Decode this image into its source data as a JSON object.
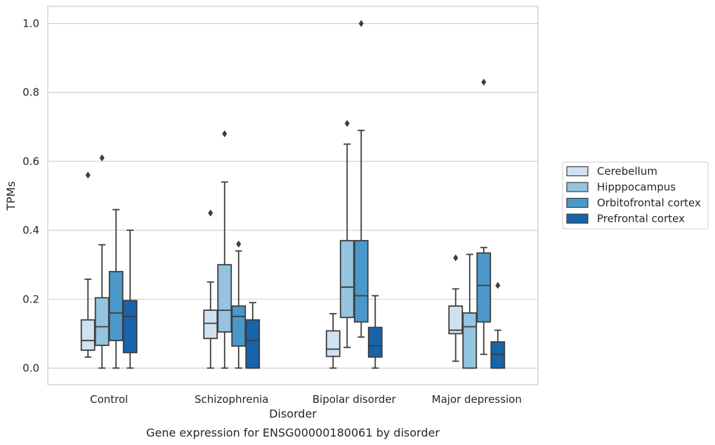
{
  "chart_data": {
    "type": "box",
    "caption": "Gene expression for ENSG00000180061 by disorder",
    "xlabel": "Disorder",
    "ylabel": "TPMs",
    "ylim": [
      -0.048,
      1.05
    ],
    "yticks": [
      "0.0",
      "0.2",
      "0.4",
      "0.6",
      "0.8",
      "1.0"
    ],
    "categories": [
      "Control",
      "Schizophrenia",
      "Bipolar disorder",
      "Major depression"
    ],
    "grid": true,
    "legend_position": "right",
    "colors": [
      "#d0e1f2",
      "#94c4df",
      "#4a98c9",
      "#1764ab"
    ],
    "series": [
      {
        "name": "Cerebellum",
        "boxes": [
          {
            "whislo": 0.032,
            "q1": 0.052,
            "med": 0.08,
            "q3": 0.14,
            "whishi": 0.258,
            "fliers": [
              0.56
            ]
          },
          {
            "whislo": 0.0,
            "q1": 0.086,
            "med": 0.13,
            "q3": 0.168,
            "whishi": 0.25,
            "fliers": [
              0.45
            ]
          },
          {
            "whislo": 0.0,
            "q1": 0.034,
            "med": 0.055,
            "q3": 0.108,
            "whishi": 0.158,
            "fliers": []
          },
          {
            "whislo": 0.02,
            "q1": 0.1,
            "med": 0.11,
            "q3": 0.18,
            "whishi": 0.23,
            "fliers": [
              0.32
            ]
          }
        ]
      },
      {
        "name": "Hipppocampus",
        "boxes": [
          {
            "whislo": 0.0,
            "q1": 0.066,
            "med": 0.12,
            "q3": 0.204,
            "whishi": 0.358,
            "fliers": [
              0.61
            ]
          },
          {
            "whislo": 0.0,
            "q1": 0.105,
            "med": 0.168,
            "q3": 0.3,
            "whishi": 0.54,
            "fliers": [
              0.68
            ]
          },
          {
            "whislo": 0.06,
            "q1": 0.147,
            "med": 0.235,
            "q3": 0.37,
            "whishi": 0.65,
            "fliers": [
              0.71
            ]
          },
          {
            "whislo": 0.0,
            "q1": 0.0,
            "med": 0.12,
            "q3": 0.16,
            "whishi": 0.33,
            "fliers": []
          }
        ]
      },
      {
        "name": "Orbitofrontal cortex",
        "boxes": [
          {
            "whislo": 0.0,
            "q1": 0.08,
            "med": 0.16,
            "q3": 0.28,
            "whishi": 0.46,
            "fliers": []
          },
          {
            "whislo": 0.0,
            "q1": 0.064,
            "med": 0.15,
            "q3": 0.18,
            "whishi": 0.34,
            "fliers": [
              0.36
            ]
          },
          {
            "whislo": 0.09,
            "q1": 0.134,
            "med": 0.21,
            "q3": 0.37,
            "whishi": 0.69,
            "fliers": [
              1.0
            ]
          },
          {
            "whislo": 0.04,
            "q1": 0.134,
            "med": 0.24,
            "q3": 0.334,
            "whishi": 0.35,
            "fliers": [
              0.83
            ]
          }
        ]
      },
      {
        "name": "Prefrontal cortex",
        "boxes": [
          {
            "whislo": 0.0,
            "q1": 0.045,
            "med": 0.15,
            "q3": 0.196,
            "whishi": 0.4,
            "fliers": []
          },
          {
            "whislo": 0.0,
            "q1": 0.0,
            "med": 0.08,
            "q3": 0.14,
            "whishi": 0.19,
            "fliers": []
          },
          {
            "whislo": 0.0,
            "q1": 0.032,
            "med": 0.065,
            "q3": 0.118,
            "whishi": 0.21,
            "fliers": []
          },
          {
            "whislo": 0.0,
            "q1": 0.0,
            "med": 0.04,
            "q3": 0.076,
            "whishi": 0.11,
            "fliers": [
              0.24
            ]
          }
        ]
      }
    ]
  }
}
